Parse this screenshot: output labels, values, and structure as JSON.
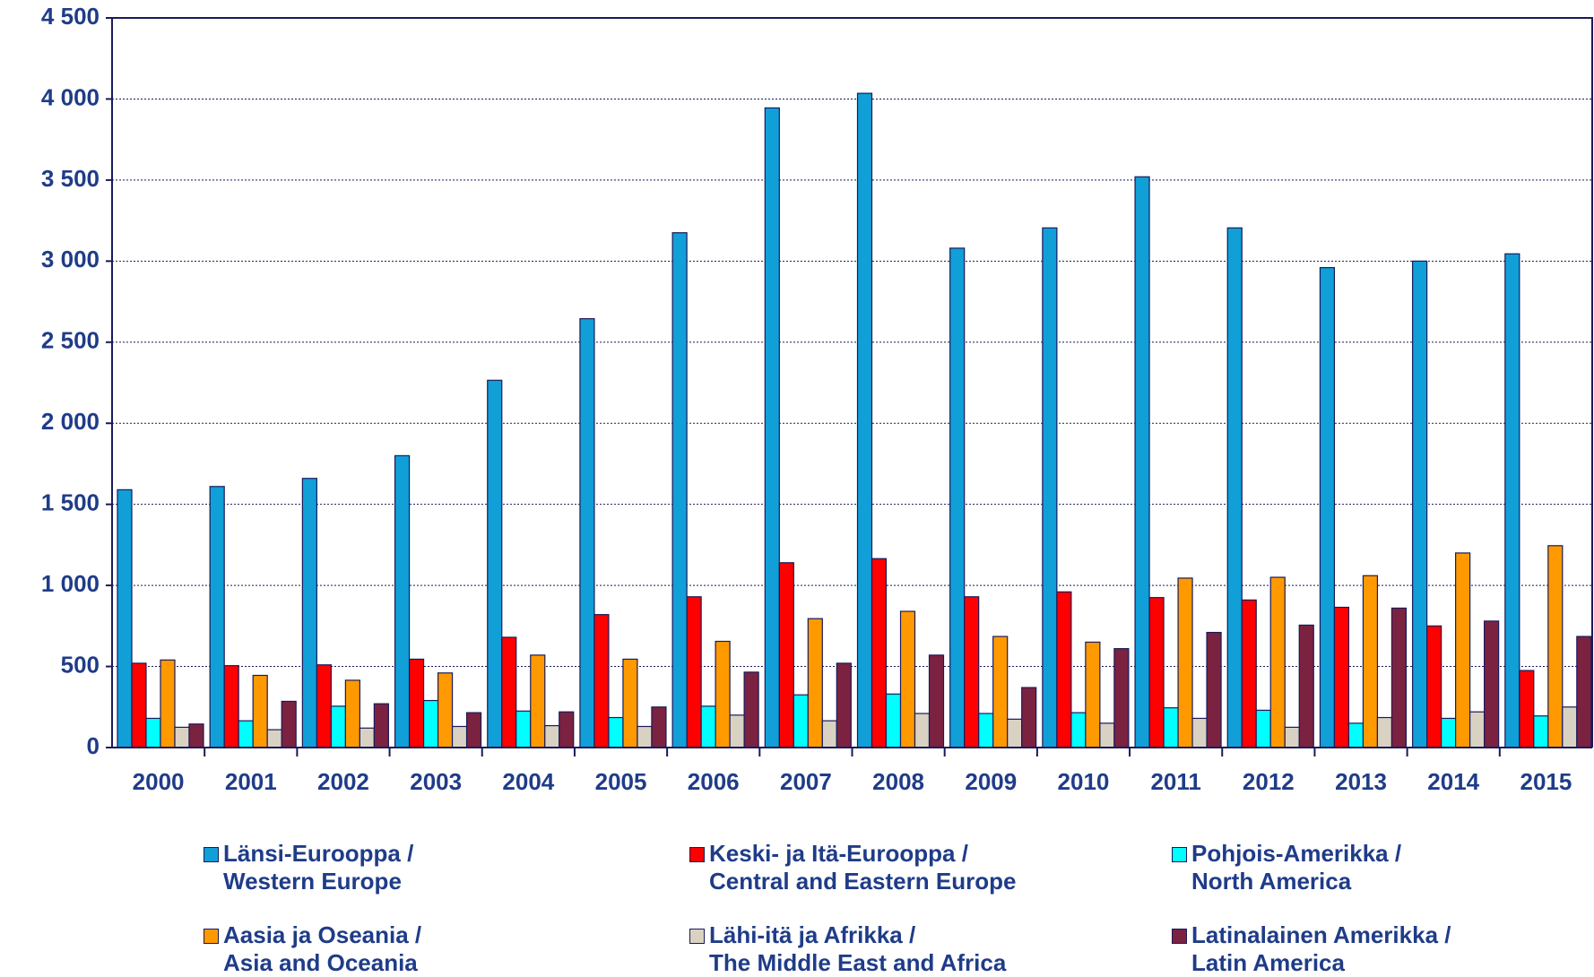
{
  "chart_data": {
    "type": "bar",
    "categories": [
      "2000",
      "2001",
      "2002",
      "2003",
      "2004",
      "2005",
      "2006",
      "2007",
      "2008",
      "2009",
      "2010",
      "2011",
      "2012",
      "2013",
      "2014",
      "2015"
    ],
    "series": [
      {
        "name": "Länsi-Eurooppa /\nWestern Europe",
        "color": "#119fd8",
        "values": [
          1590,
          1610,
          1660,
          1800,
          2265,
          2645,
          3175,
          3945,
          4035,
          3080,
          3205,
          3520,
          3205,
          2960,
          3000,
          3045
        ]
      },
      {
        "name": "Keski- ja Itä-Eurooppa /\nCentral and Eastern Europe",
        "color": "#ff0000",
        "values": [
          520,
          505,
          510,
          545,
          680,
          820,
          930,
          1140,
          1165,
          930,
          960,
          925,
          910,
          865,
          750,
          475
        ]
      },
      {
        "name": "Pohjois-Amerikka /\nNorth America",
        "color": "#00ffff",
        "values": [
          180,
          165,
          255,
          290,
          225,
          185,
          255,
          325,
          330,
          210,
          215,
          245,
          230,
          150,
          180,
          195
        ]
      },
      {
        "name": "Aasia ja Oseania /\nAsia and Oceania",
        "color": "#ff9900",
        "values": [
          540,
          445,
          415,
          460,
          570,
          545,
          655,
          795,
          840,
          685,
          650,
          1045,
          1050,
          1060,
          1200,
          1245
        ]
      },
      {
        "name": "Lähi-itä ja Afrikka /\nThe Middle East and Africa",
        "color": "#d9d2c3",
        "values": [
          125,
          110,
          120,
          130,
          135,
          130,
          200,
          165,
          210,
          175,
          150,
          180,
          125,
          185,
          220,
          250
        ]
      },
      {
        "name": "Latinalainen Amerikka /\nLatin America",
        "color": "#7b2240",
        "values": [
          145,
          285,
          270,
          215,
          220,
          250,
          465,
          520,
          570,
          370,
          610,
          710,
          755,
          860,
          780,
          685
        ]
      }
    ],
    "ylim": [
      0,
      4500
    ],
    "yticks": [
      0,
      500,
      {
        "value": 1000,
        "label": "1 000"
      },
      {
        "value": 1500,
        "label": "1 500"
      },
      {
        "value": 2000,
        "label": "2 000"
      },
      {
        "value": 2500,
        "label": "2 500"
      },
      {
        "value": 3000,
        "label": "3 000"
      },
      {
        "value": 3500,
        "label": "3 500"
      },
      {
        "value": 4000,
        "label": "4 000"
      },
      {
        "value": 4500,
        "label": "4 500"
      }
    ],
    "grid": true
  }
}
